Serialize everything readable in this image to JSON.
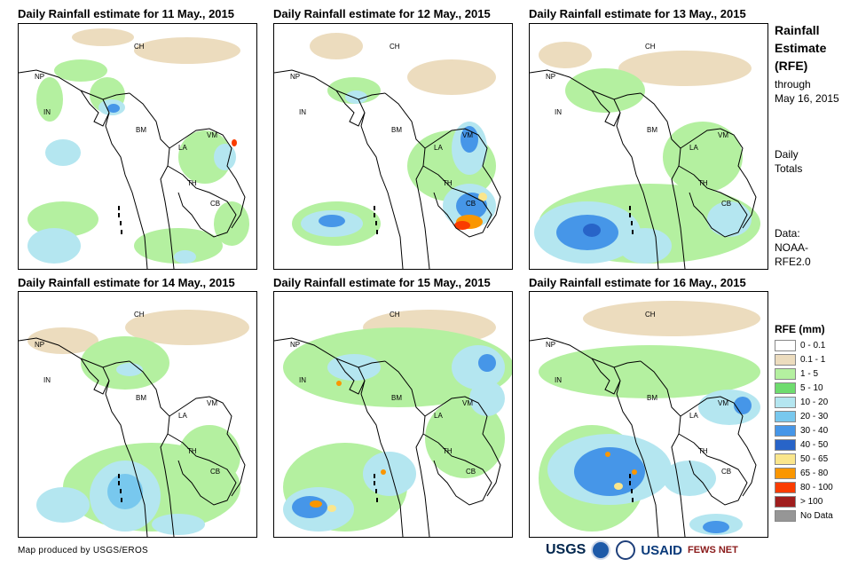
{
  "panels": [
    {
      "title": "Daily Rainfall estimate for 11 May., 2015"
    },
    {
      "title": "Daily Rainfall estimate for 12 May., 2015"
    },
    {
      "title": "Daily Rainfall estimate for 13 May., 2015"
    },
    {
      "title": "Daily Rainfall estimate for 14 May., 2015"
    },
    {
      "title": "Daily Rainfall estimate for 15 May., 2015"
    },
    {
      "title": "Daily Rainfall estimate for 16 May., 2015"
    }
  ],
  "country_labels": {
    "ch": "CH",
    "np": "NP",
    "in": "IN",
    "bm": "BM",
    "la": "LA",
    "vm": "VM",
    "th": "TH",
    "cb": "CB"
  },
  "sidebar": {
    "title_line1": "Rainfall",
    "title_line2": "Estimate",
    "title_line3": "(RFE)",
    "through": "through",
    "date": "May 16, 2015",
    "daily": "Daily",
    "totals": "Totals",
    "data_label": "Data:",
    "source_line1": "NOAA-",
    "source_line2": "RFE2.0"
  },
  "legend": {
    "title": "RFE (mm)",
    "items": [
      {
        "label": "0 - 0.1",
        "color": "#ffffff"
      },
      {
        "label": "0.1 - 1",
        "color": "#ecdcbe"
      },
      {
        "label": "1 - 5",
        "color": "#b4f0a0"
      },
      {
        "label": "5 - 10",
        "color": "#6edc6e"
      },
      {
        "label": "10 - 20",
        "color": "#b4e6f0"
      },
      {
        "label": "20 - 30",
        "color": "#78c8ee"
      },
      {
        "label": "30 - 40",
        "color": "#4696e8"
      },
      {
        "label": "40 - 50",
        "color": "#2864c8"
      },
      {
        "label": "50 - 65",
        "color": "#fae68c"
      },
      {
        "label": "65 - 80",
        "color": "#fa9600"
      },
      {
        "label": "80 - 100",
        "color": "#fa3c00"
      },
      {
        "label": "> 100",
        "color": "#a01e1e"
      },
      {
        "label": "No Data",
        "color": "#969696"
      }
    ]
  },
  "footer": {
    "credit": "Map produced by USGS/EROS",
    "logo_usgs": "USGS",
    "logo_usaid": "USAID",
    "logo_fews": "FEWS NET"
  }
}
